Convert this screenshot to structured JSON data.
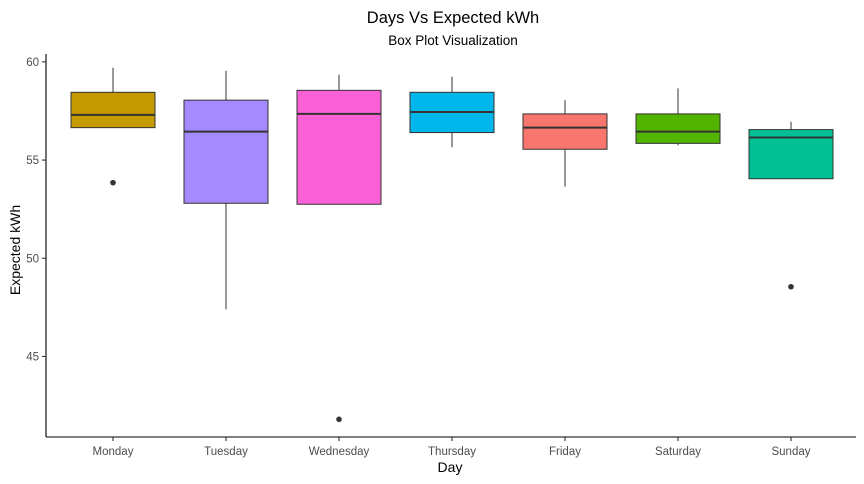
{
  "chart_data": {
    "type": "box",
    "title": "Days Vs Expected kWh",
    "subtitle": "Box Plot Visualization",
    "xlabel": "Day",
    "ylabel": "Expected kWh",
    "ylim": [
      40.9,
      60.4
    ],
    "yticks": [
      45,
      50,
      55,
      60
    ],
    "grid": false,
    "legend": "none",
    "categories": [
      "Monday",
      "Tuesday",
      "Wednesday",
      "Thursday",
      "Friday",
      "Saturday",
      "Sunday"
    ],
    "boxes": [
      {
        "category": "Monday",
        "color": "#C49A00",
        "whisker_low": 56.65,
        "q1": 56.65,
        "median": 57.3,
        "q3": 58.45,
        "whisker_high": 59.7,
        "outliers": [
          53.85
        ]
      },
      {
        "category": "Tuesday",
        "color": "#A58AFF",
        "whisker_low": 47.4,
        "q1": 52.8,
        "median": 56.45,
        "q3": 58.05,
        "whisker_high": 59.55,
        "outliers": []
      },
      {
        "category": "Wednesday",
        "color": "#FB61D7",
        "whisker_low": 52.75,
        "q1": 52.75,
        "median": 57.35,
        "q3": 58.55,
        "whisker_high": 59.35,
        "outliers": [
          41.8
        ]
      },
      {
        "category": "Thursday",
        "color": "#00B6EB",
        "whisker_low": 55.65,
        "q1": 56.4,
        "median": 57.45,
        "q3": 58.45,
        "whisker_high": 59.25,
        "outliers": []
      },
      {
        "category": "Friday",
        "color": "#F8766D",
        "whisker_low": 53.65,
        "q1": 55.55,
        "median": 56.65,
        "q3": 57.35,
        "whisker_high": 58.05,
        "outliers": []
      },
      {
        "category": "Saturday",
        "color": "#53B400",
        "whisker_low": 55.75,
        "q1": 55.85,
        "median": 56.45,
        "q3": 57.35,
        "whisker_high": 58.65,
        "outliers": []
      },
      {
        "category": "Sunday",
        "color": "#00C094",
        "whisker_low": 54.05,
        "q1": 54.05,
        "median": 56.15,
        "q3": 56.55,
        "whisker_high": 56.95,
        "outliers": [
          48.55
        ]
      }
    ]
  }
}
